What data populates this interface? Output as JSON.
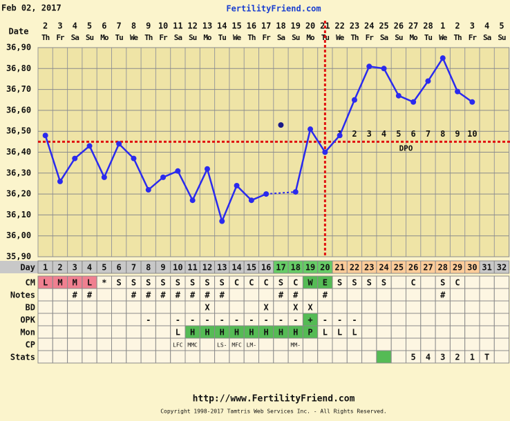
{
  "header": {
    "date": "Feb 02, 2017",
    "site": "FertilityFriend.com"
  },
  "chart_data": {
    "type": "line",
    "color": "#2a2aee",
    "date_label": "Date",
    "dates": [
      2,
      3,
      4,
      5,
      6,
      7,
      8,
      9,
      10,
      11,
      12,
      13,
      14,
      15,
      16,
      17,
      18,
      19,
      20,
      21,
      22,
      23,
      24,
      25,
      26,
      27,
      28,
      1,
      2,
      3,
      4,
      5
    ],
    "weekdays": [
      "Th",
      "Fr",
      "Sa",
      "Su",
      "Mo",
      "Tu",
      "We",
      "Th",
      "Fr",
      "Sa",
      "Su",
      "Mo",
      "Tu",
      "We",
      "Th",
      "Fr",
      "Sa",
      "Su",
      "Mo",
      "Tu",
      "We",
      "Th",
      "Fr",
      "Sa",
      "Su",
      "Mo",
      "Tu",
      "We",
      "Th",
      "Fr",
      "Sa",
      "Su"
    ],
    "ylim": [
      35.9,
      36.9
    ],
    "yticks": [
      {
        "value": 35.9,
        "label": "35,90"
      },
      {
        "value": 36.0,
        "label": "36,00"
      },
      {
        "value": 36.1,
        "label": "36,10"
      },
      {
        "value": 36.2,
        "label": "36,20"
      },
      {
        "value": 36.3,
        "label": "36,30"
      },
      {
        "value": 36.4,
        "label": "36,40"
      },
      {
        "value": 36.5,
        "label": "36,50"
      },
      {
        "value": 36.6,
        "label": "36,60"
      },
      {
        "value": 36.7,
        "label": "36,70"
      },
      {
        "value": 36.8,
        "label": "36,80"
      },
      {
        "value": 36.9,
        "label": "36,90"
      }
    ],
    "grid": true,
    "values": [
      36.48,
      36.26,
      36.37,
      36.43,
      36.28,
      36.44,
      36.37,
      36.22,
      36.28,
      36.31,
      36.17,
      36.32,
      36.07,
      36.24,
      36.17,
      36.2,
      null,
      36.21,
      36.51,
      36.4,
      36.48,
      36.65,
      36.81,
      36.8,
      36.67,
      36.64,
      36.74,
      36.85,
      36.69,
      36.64,
      null,
      null
    ],
    "discarded": [
      null,
      null,
      null,
      null,
      null,
      null,
      null,
      null,
      null,
      null,
      null,
      null,
      null,
      null,
      null,
      null,
      36.53,
      null,
      null,
      null,
      null,
      null,
      null,
      null,
      null,
      null,
      null,
      null,
      null,
      null,
      null,
      null
    ],
    "coverline": 36.45,
    "coverline_color": "#e01010",
    "ovulation_day": 20,
    "dpo": [
      null,
      null,
      null,
      null,
      null,
      null,
      null,
      null,
      null,
      null,
      null,
      null,
      null,
      null,
      null,
      null,
      null,
      null,
      null,
      null,
      1,
      2,
      3,
      4,
      5,
      6,
      7,
      8,
      9,
      10,
      null,
      null
    ],
    "dpo_label": "DPO",
    "day_label": "Day",
    "days": [
      1,
      2,
      3,
      4,
      5,
      6,
      7,
      8,
      9,
      10,
      11,
      12,
      13,
      14,
      15,
      16,
      17,
      18,
      19,
      20,
      21,
      22,
      23,
      24,
      25,
      26,
      27,
      28,
      29,
      30,
      31,
      32
    ],
    "day_colors": [
      "#c8c8c8",
      "#c8c8c8",
      "#c8c8c8",
      "#c8c8c8",
      "#c8c8c8",
      "#c8c8c8",
      "#c8c8c8",
      "#c8c8c8",
      "#c8c8c8",
      "#c8c8c8",
      "#c8c8c8",
      "#c8c8c8",
      "#c8c8c8",
      "#c8c8c8",
      "#c8c8c8",
      "#c8c8c8",
      "#66cc66",
      "#66cc66",
      "#66cc66",
      "#66cc66",
      "#ffcc99",
      "#ffcc99",
      "#ffcc99",
      "#ffcc99",
      "#ffcc99",
      "#ffcc99",
      "#ffcc99",
      "#ffcc99",
      "#ffcc99",
      "#ffcc99",
      "#c8c8c8",
      "#c8c8c8"
    ],
    "rows": [
      {
        "label": "CM",
        "cells": [
          "L",
          "M",
          "M",
          "L",
          "*",
          "S",
          "S",
          "S",
          "S",
          "S",
          "S",
          "S",
          "S",
          "C",
          "C",
          "C",
          "S",
          "C",
          "W",
          "E",
          "S",
          "S",
          "S",
          "S",
          null,
          "C",
          null,
          "S",
          "C",
          null,
          null,
          null
        ],
        "colors": [
          "#f08090",
          "#f08090",
          "#f08090",
          "#f08090",
          null,
          null,
          null,
          null,
          null,
          null,
          null,
          null,
          null,
          null,
          null,
          null,
          null,
          null,
          "#55bb55",
          "#55bb55",
          null,
          null,
          null,
          null,
          null,
          null,
          null,
          null,
          null,
          null,
          null,
          null
        ]
      },
      {
        "label": "Notes",
        "cells": [
          null,
          null,
          "#",
          "#",
          null,
          null,
          "#",
          "#",
          "#",
          "#",
          "#",
          "#",
          "#",
          null,
          null,
          null,
          "#",
          "#",
          null,
          "#",
          null,
          null,
          null,
          null,
          null,
          null,
          null,
          "#",
          null,
          null,
          null,
          null
        ]
      },
      {
        "label": "BD",
        "cells": [
          null,
          null,
          null,
          null,
          null,
          null,
          null,
          null,
          null,
          null,
          null,
          "X",
          null,
          null,
          null,
          "X",
          null,
          "X",
          "X",
          null,
          null,
          null,
          null,
          null,
          null,
          null,
          null,
          null,
          null,
          null,
          null,
          null
        ]
      },
      {
        "label": "OPK",
        "cells": [
          null,
          null,
          null,
          null,
          null,
          null,
          null,
          "-",
          null,
          "-",
          "-",
          "-",
          "-",
          "-",
          "-",
          "-",
          "-",
          "-",
          "+",
          "-",
          "-",
          "-",
          null,
          null,
          null,
          null,
          null,
          null,
          null,
          null,
          null,
          null
        ],
        "colors": [
          null,
          null,
          null,
          null,
          null,
          null,
          null,
          null,
          null,
          null,
          null,
          null,
          null,
          null,
          null,
          null,
          null,
          null,
          "#55bb55",
          null,
          null,
          null,
          null,
          null,
          null,
          null,
          null,
          null,
          null,
          null,
          null,
          null
        ]
      },
      {
        "label": "Mon",
        "cells": [
          null,
          null,
          null,
          null,
          null,
          null,
          null,
          null,
          null,
          "L",
          "H",
          "H",
          "H",
          "H",
          "H",
          "H",
          "H",
          "H",
          "P",
          "L",
          "L",
          "L",
          null,
          null,
          null,
          null,
          null,
          null,
          null,
          null,
          null,
          null
        ],
        "colors": [
          null,
          null,
          null,
          null,
          null,
          null,
          null,
          null,
          null,
          null,
          "#55bb55",
          "#55bb55",
          "#55bb55",
          "#55bb55",
          "#55bb55",
          "#55bb55",
          "#55bb55",
          "#55bb55",
          "#55bb55",
          null,
          null,
          null,
          null,
          null,
          null,
          null,
          null,
          null,
          null,
          null,
          null,
          null
        ]
      },
      {
        "label": "CP",
        "cells": [
          null,
          null,
          null,
          null,
          null,
          null,
          null,
          null,
          null,
          "LFC",
          "MMC",
          null,
          "LS-",
          "MFC",
          "LM-",
          null,
          null,
          "MM-",
          null,
          null,
          null,
          null,
          null,
          null,
          null,
          null,
          null,
          null,
          null,
          null,
          null,
          null
        ]
      },
      {
        "label": "Stats",
        "cells": [
          null,
          null,
          null,
          null,
          null,
          null,
          null,
          null,
          null,
          null,
          null,
          null,
          null,
          null,
          null,
          null,
          null,
          null,
          null,
          null,
          null,
          null,
          null,
          null,
          null,
          5,
          4,
          3,
          2,
          1,
          "T",
          null
        ],
        "colors": [
          null,
          null,
          null,
          null,
          null,
          null,
          null,
          null,
          null,
          null,
          null,
          null,
          null,
          null,
          null,
          null,
          null,
          null,
          null,
          null,
          null,
          null,
          null,
          "#55bb55",
          null,
          null,
          null,
          null,
          null,
          null,
          null,
          null
        ]
      }
    ]
  },
  "footer": {
    "url": "http://www.FertilityFriend.com",
    "copyright": "Copyright 1998-2017 Tamtris Web Services Inc. - All Rights Reserved."
  }
}
